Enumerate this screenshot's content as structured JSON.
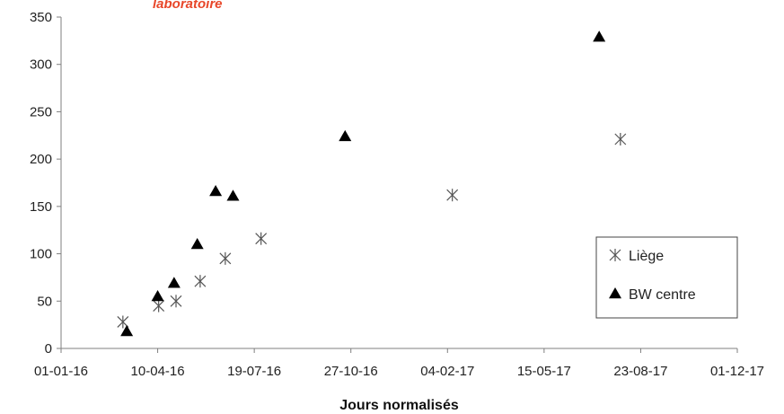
{
  "header": {
    "partial_title": "laboratoire",
    "partial_title_color": "#e8472a"
  },
  "chart_data": {
    "type": "scatter",
    "title": "",
    "xlabel": "Jours normalisés",
    "ylabel": "",
    "x_is_date": true,
    "xlim": [
      "2016-01-01",
      "2017-12-01"
    ],
    "ylim": [
      0,
      350
    ],
    "x_ticks": [
      {
        "date": "2016-01-01",
        "label": "01-01-16"
      },
      {
        "date": "2016-04-10",
        "label": "10-04-16"
      },
      {
        "date": "2016-07-19",
        "label": "19-07-16"
      },
      {
        "date": "2016-10-27",
        "label": "27-10-16"
      },
      {
        "date": "2017-02-04",
        "label": "04-02-17"
      },
      {
        "date": "2017-05-15",
        "label": "15-05-17"
      },
      {
        "date": "2017-08-23",
        "label": "23-08-17"
      },
      {
        "date": "2017-12-01",
        "label": "01-12-17"
      }
    ],
    "y_ticks": [
      0,
      50,
      100,
      150,
      200,
      250,
      300,
      350
    ],
    "grid": false,
    "legend_position": "lower-right",
    "series": [
      {
        "name": "Liège",
        "marker": "asterisk",
        "color": "#555555",
        "points": [
          {
            "x": "2016-03-05",
            "y": 28
          },
          {
            "x": "2016-04-11",
            "y": 45
          },
          {
            "x": "2016-04-29",
            "y": 50
          },
          {
            "x": "2016-05-24",
            "y": 71
          },
          {
            "x": "2016-06-19",
            "y": 95
          },
          {
            "x": "2016-07-26",
            "y": 116
          },
          {
            "x": "2017-02-09",
            "y": 162
          },
          {
            "x": "2017-08-02",
            "y": 221
          }
        ]
      },
      {
        "name": "BW centre",
        "marker": "triangle",
        "color": "#000000",
        "points": [
          {
            "x": "2016-03-09",
            "y": 18
          },
          {
            "x": "2016-04-10",
            "y": 55
          },
          {
            "x": "2016-04-27",
            "y": 69
          },
          {
            "x": "2016-05-21",
            "y": 110
          },
          {
            "x": "2016-06-09",
            "y": 166
          },
          {
            "x": "2016-06-27",
            "y": 161
          },
          {
            "x": "2016-10-21",
            "y": 224
          },
          {
            "x": "2017-07-11",
            "y": 329
          }
        ]
      }
    ]
  }
}
